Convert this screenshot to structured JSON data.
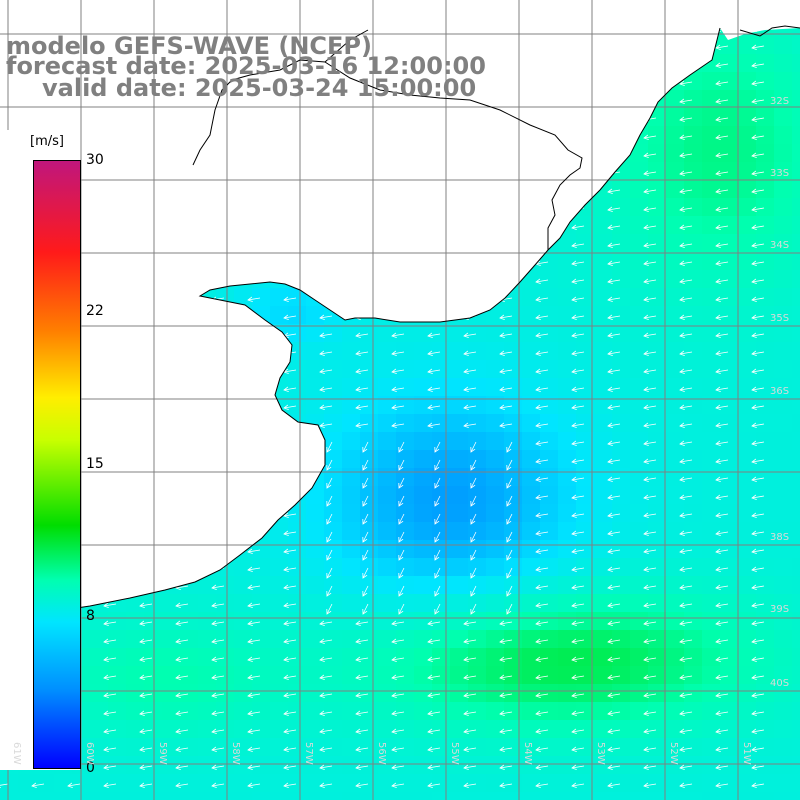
{
  "title": {
    "model": "modelo GEFS-WAVE (NCEP)",
    "forecast": "forecast date: 2025-03-16 12:00:00",
    "valid": "valid date: 2025-03-24 15:00:00"
  },
  "colorbar": {
    "unit": "[m/s]",
    "ticks": [
      "30",
      "22",
      "15",
      "8",
      "0"
    ],
    "colors": [
      "#0000ff",
      "#0090ff",
      "#00e5ff",
      "#00ffb0",
      "#00dd00",
      "#c8ff00",
      "#ffee00",
      "#ff7f00",
      "#ff1a1a",
      "#c0167c"
    ]
  },
  "lat_labels": [
    "32S",
    "33S",
    "34S",
    "35S",
    "36S",
    "38S",
    "39S",
    "40S"
  ],
  "lon_labels": [
    "61W",
    "60W",
    "59W",
    "58W",
    "57W",
    "56W",
    "55W",
    "54W",
    "53W",
    "52W",
    "51W"
  ],
  "colors": {
    "land": "#ffffff",
    "grid": "#808080",
    "coast": "#000000",
    "arrows": "#ffffff",
    "title": "#808080"
  }
}
